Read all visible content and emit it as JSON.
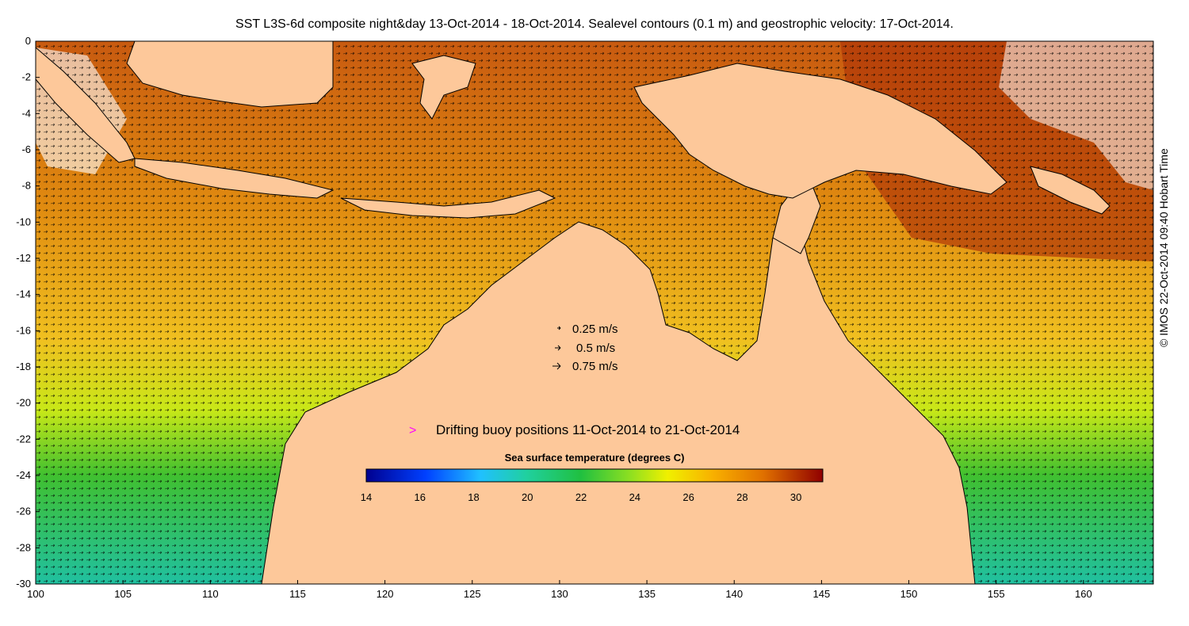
{
  "title": "SST L3S-6d composite night&day 13-Oct-2014 - 18-Oct-2014. Sealevel contours (0.1 m) and geostrophic velocity: 17-Oct-2014.",
  "credit": "© IMOS 22-Oct-2014 09:40 Hobart Time",
  "map": {
    "lon_range": [
      100,
      164
    ],
    "lat_range": [
      -30,
      0
    ],
    "x_ticks": [
      "100",
      "105",
      "110",
      "115",
      "120",
      "125",
      "130",
      "135",
      "140",
      "145",
      "150",
      "155",
      "160"
    ],
    "y_ticks": [
      "0",
      "-2",
      "-4",
      "-6",
      "-8",
      "-10",
      "-12",
      "-14",
      "-16",
      "-18",
      "-20",
      "-22",
      "-24",
      "-26",
      "-28",
      "-30"
    ],
    "land_color": "#fdc89a",
    "ocean_color_north": "#d06a10",
    "ocean_color_south": "#30c030"
  },
  "velocity_legend": [
    {
      "label": "0.25 m/s"
    },
    {
      "label": "0.5 m/s"
    },
    {
      "label": "0.75 m/s"
    }
  ],
  "buoy_legend": {
    "label": "Drifting buoy positions 11-Oct-2014 to 21-Oct-2014",
    "marker_color": "#ff00ff"
  },
  "colorbar": {
    "title": "Sea surface temperature (degrees C)",
    "range": [
      14,
      31
    ],
    "ticks": [
      "14",
      "16",
      "18",
      "20",
      "22",
      "24",
      "26",
      "28",
      "30"
    ]
  }
}
